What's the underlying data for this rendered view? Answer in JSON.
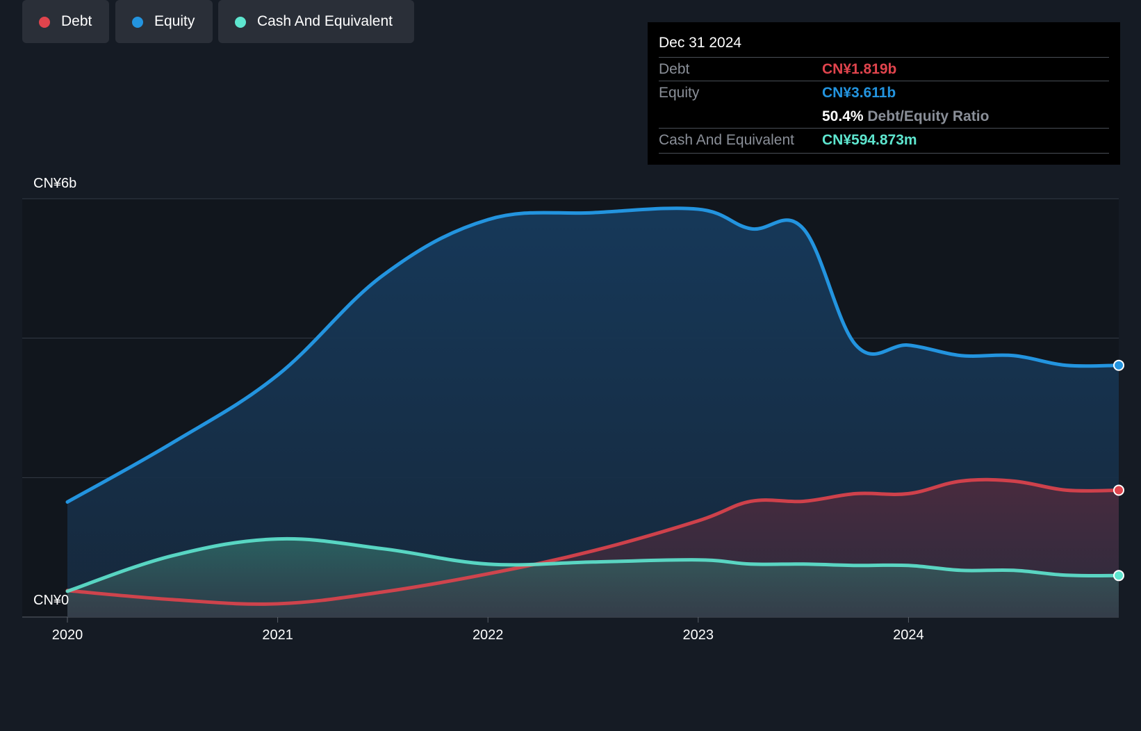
{
  "chart_data": {
    "type": "area",
    "y_unit_labels": {
      "top": "CN¥6b",
      "bottom": "CN¥0"
    },
    "ylim": [
      0,
      6
    ],
    "xlim": [
      2020.0,
      2025.0
    ],
    "x_ticks": [
      "2020",
      "2021",
      "2022",
      "2023",
      "2024"
    ],
    "gridlines": [
      0,
      2,
      4,
      6
    ],
    "series": [
      {
        "name": "Equity",
        "color": "#2394df",
        "points": [
          [
            2020.0,
            1.65
          ],
          [
            2020.5,
            2.5
          ],
          [
            2021.0,
            3.47
          ],
          [
            2021.5,
            4.9
          ],
          [
            2022.0,
            5.7
          ],
          [
            2022.5,
            5.8
          ],
          [
            2023.0,
            5.85
          ],
          [
            2023.25,
            5.57
          ],
          [
            2023.5,
            5.57
          ],
          [
            2023.75,
            3.9
          ],
          [
            2024.0,
            3.9
          ],
          [
            2024.25,
            3.75
          ],
          [
            2024.5,
            3.75
          ],
          [
            2024.75,
            3.61
          ],
          [
            2025.0,
            3.611
          ]
        ]
      },
      {
        "name": "Debt",
        "color": "#e0444d",
        "points": [
          [
            2020.0,
            0.38
          ],
          [
            2020.5,
            0.25
          ],
          [
            2021.0,
            0.19
          ],
          [
            2021.5,
            0.36
          ],
          [
            2022.0,
            0.62
          ],
          [
            2022.5,
            0.95
          ],
          [
            2023.0,
            1.38
          ],
          [
            2023.25,
            1.66
          ],
          [
            2023.5,
            1.66
          ],
          [
            2023.75,
            1.77
          ],
          [
            2024.0,
            1.77
          ],
          [
            2024.25,
            1.95
          ],
          [
            2024.5,
            1.95
          ],
          [
            2024.75,
            1.82
          ],
          [
            2025.0,
            1.819
          ]
        ]
      },
      {
        "name": "Cash And Equivalent",
        "color": "#5ee6cf",
        "points": [
          [
            2020.0,
            0.37
          ],
          [
            2020.5,
            0.88
          ],
          [
            2021.0,
            1.12
          ],
          [
            2021.5,
            0.98
          ],
          [
            2022.0,
            0.76
          ],
          [
            2022.5,
            0.79
          ],
          [
            2023.0,
            0.82
          ],
          [
            2023.25,
            0.76
          ],
          [
            2023.5,
            0.76
          ],
          [
            2023.75,
            0.74
          ],
          [
            2024.0,
            0.74
          ],
          [
            2024.25,
            0.67
          ],
          [
            2024.5,
            0.67
          ],
          [
            2024.75,
            0.6
          ],
          [
            2025.0,
            0.595
          ]
        ]
      }
    ]
  },
  "tooltip": {
    "date": "Dec 31 2024",
    "debt_label": "Debt",
    "debt_value": "CN¥1.819b",
    "equity_label": "Equity",
    "equity_value": "CN¥3.611b",
    "ratio_value": "50.4%",
    "ratio_label": "Debt/Equity Ratio",
    "cash_label": "Cash And Equivalent",
    "cash_value": "CN¥594.873m"
  },
  "legend": [
    {
      "label": "Debt",
      "color": "#e0444d"
    },
    {
      "label": "Equity",
      "color": "#2394df"
    },
    {
      "label": "Cash And Equivalent",
      "color": "#5ee6cf"
    }
  ]
}
